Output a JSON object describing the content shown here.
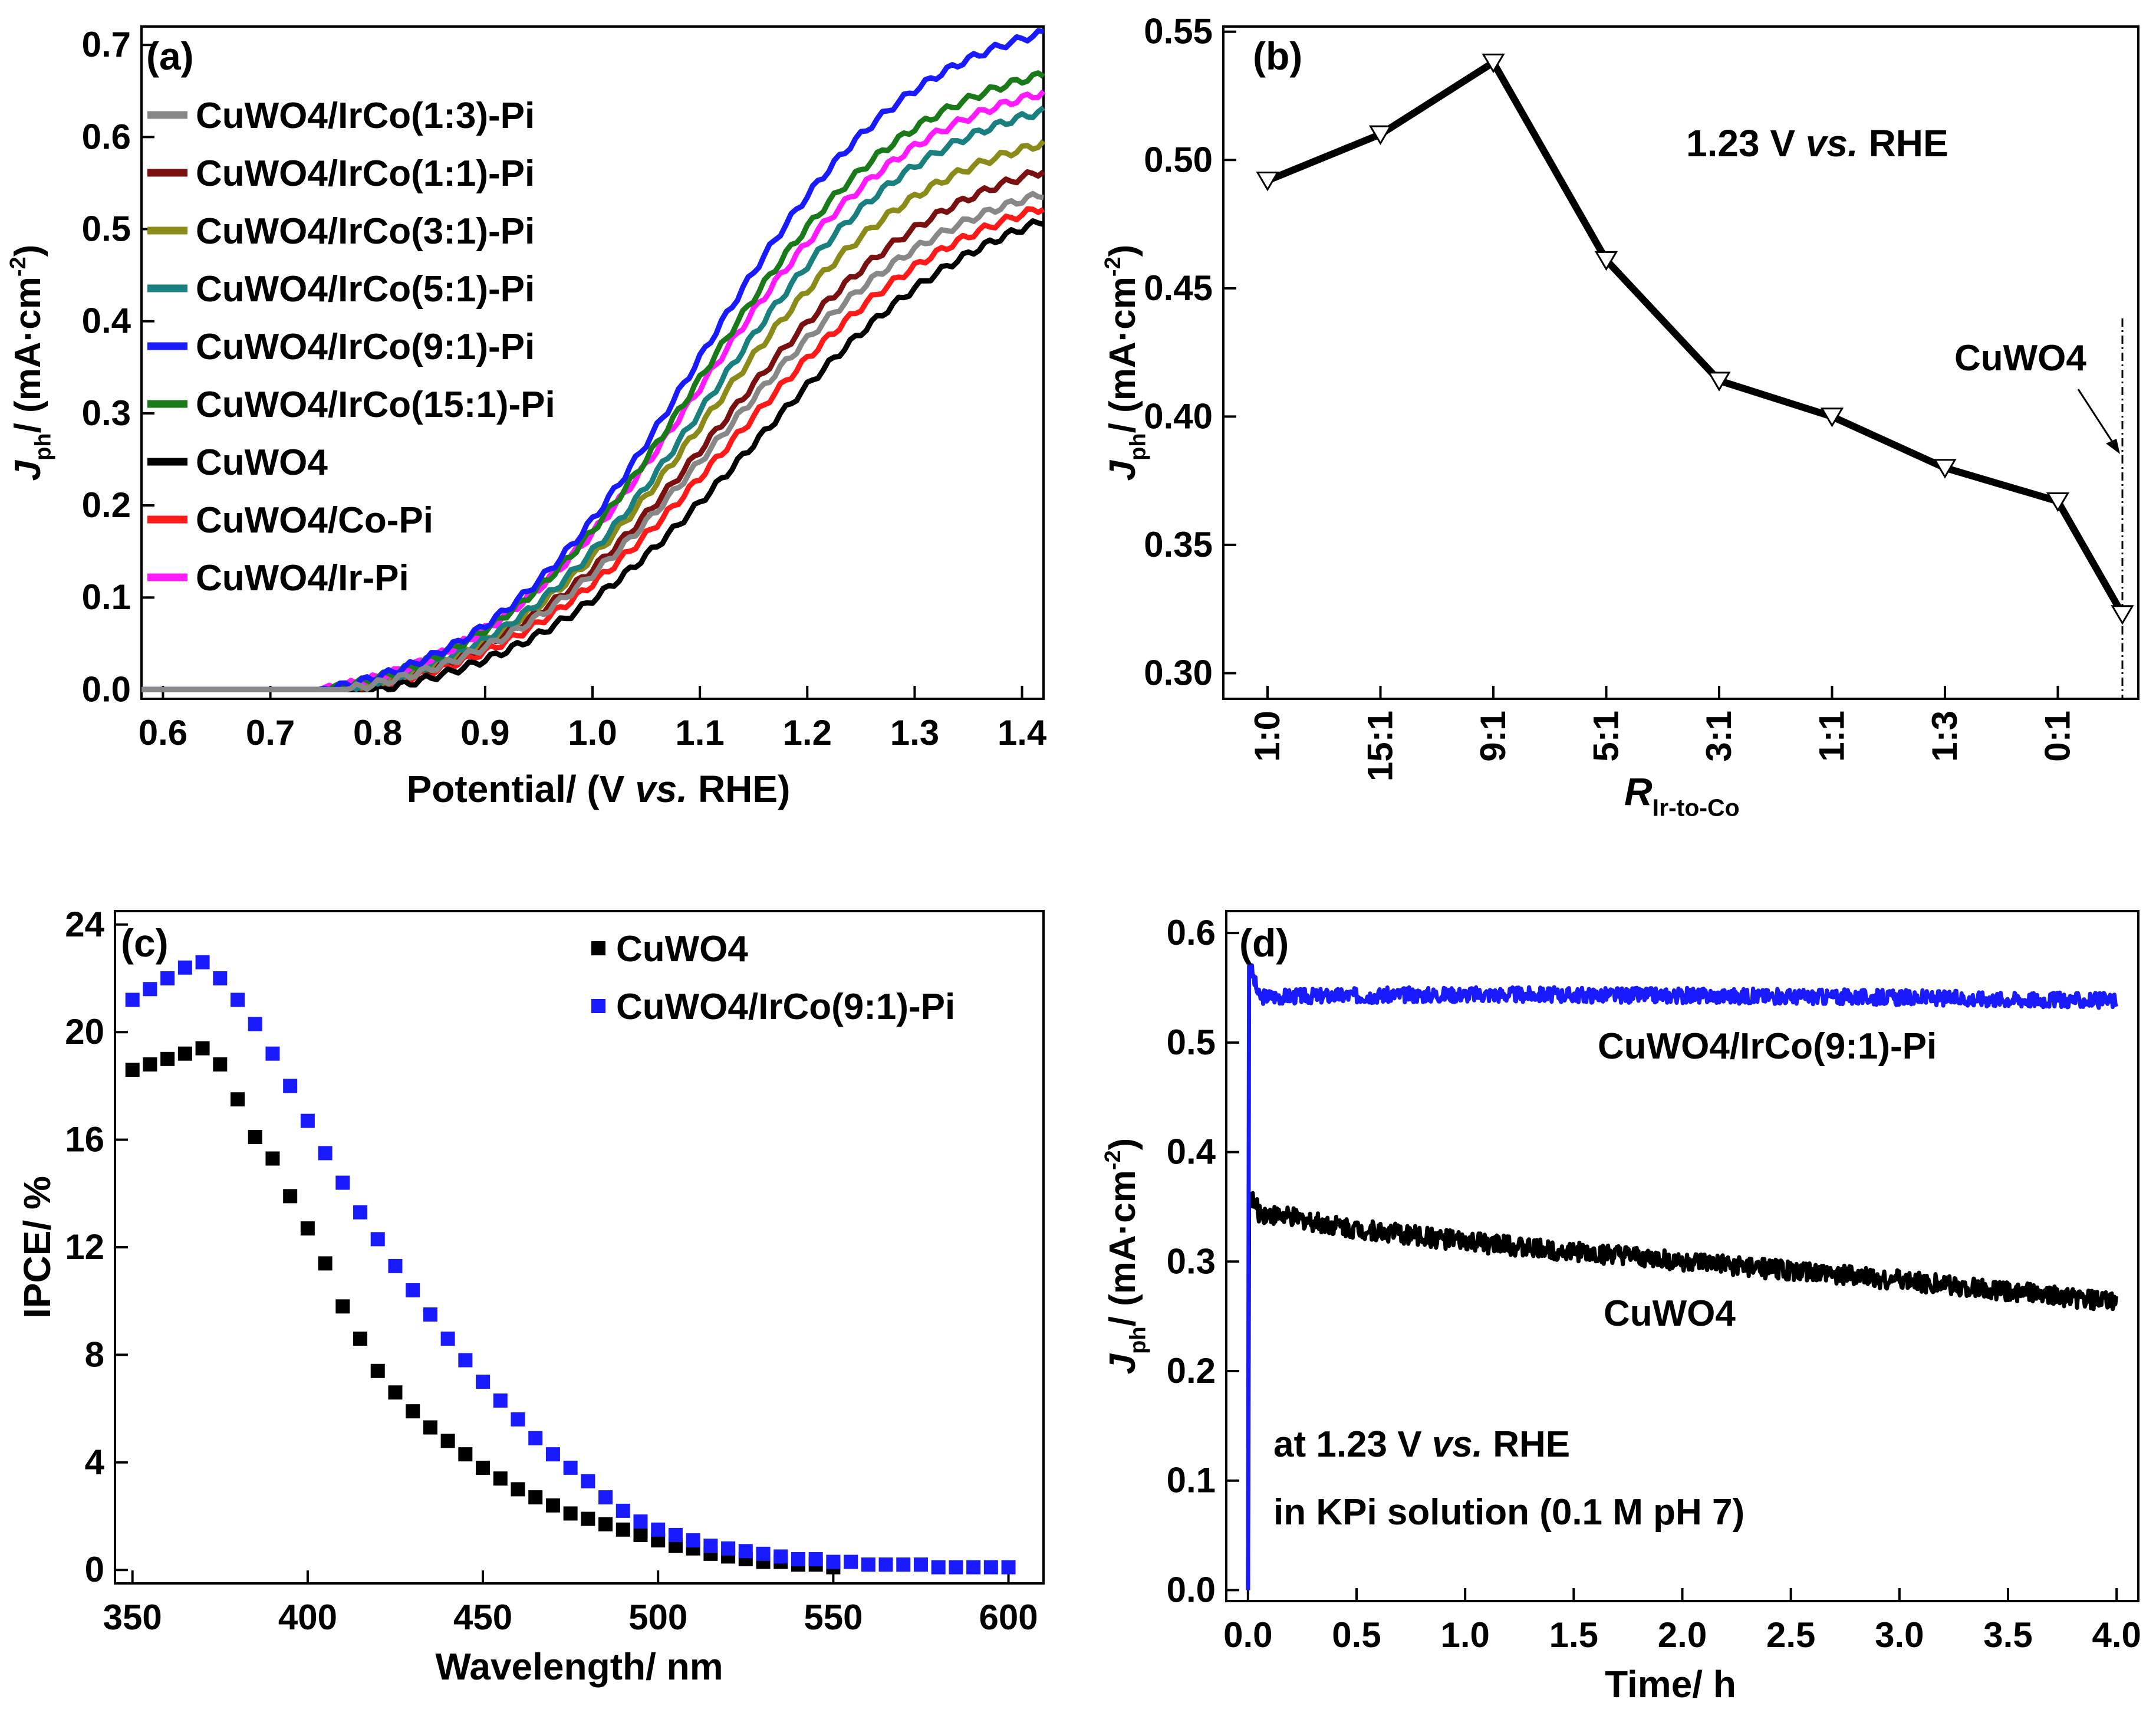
{
  "figure": {
    "description_free": true
  },
  "chart_data": [
    {
      "id": "a",
      "panel_label": "(a)",
      "type": "line",
      "xlabel": "Potential/ (V vs. RHE)",
      "xlabel_parts": [
        "Potential/ (V ",
        "vs.",
        " RHE)"
      ],
      "ylabel_parts": [
        "J",
        "ph",
        "/ (mA·cm",
        "-2",
        ")"
      ],
      "xlim": [
        0.58,
        1.42
      ],
      "ylim": [
        -0.01,
        0.72
      ],
      "xticks": [
        0.6,
        0.7,
        0.8,
        0.9,
        1.0,
        1.1,
        1.2,
        1.3,
        1.4
      ],
      "yticks": [
        0.0,
        0.1,
        0.2,
        0.3,
        0.4,
        0.5,
        0.6,
        0.7
      ],
      "legend_position": "top-left",
      "series": [
        {
          "name": "CuWO4/IrCo(1:3)-Pi",
          "color": "#888888",
          "order": 8,
          "onset": 0.77,
          "jmax": 0.535,
          "k": 4.2
        },
        {
          "name": "CuWO4/IrCo(1:1)-Pi",
          "color": "#7b1010",
          "order": 2,
          "onset": 0.77,
          "jmax": 0.56,
          "k": 4.2
        },
        {
          "name": "CuWO4/IrCo(3:1)-Pi",
          "color": "#8b8b1a",
          "order": 3,
          "onset": 0.76,
          "jmax": 0.59,
          "k": 4.4
        },
        {
          "name": "CuWO4/IrCo(5:1)-Pi",
          "color": "#1a7f7f",
          "order": 4,
          "onset": 0.76,
          "jmax": 0.625,
          "k": 4.5
        },
        {
          "name": "CuWO4/IrCo(9:1)-Pi",
          "color": "#1a1aff",
          "order": 7,
          "onset": 0.75,
          "jmax": 0.71,
          "k": 4.5
        },
        {
          "name": "CuWO4/IrCo(15:1)-Pi",
          "color": "#1a7a1a",
          "order": 6,
          "onset": 0.75,
          "jmax": 0.665,
          "k": 4.5
        },
        {
          "name": "CuWO4",
          "color": "#000000",
          "order": 1,
          "onset": 0.8,
          "jmax": 0.505,
          "k": 4.0
        },
        {
          "name": "CuWO4/Co-Pi",
          "color": "#ff1a1a",
          "order": 0,
          "onset": 0.78,
          "jmax": 0.52,
          "k": 4.1
        },
        {
          "name": "CuWO4/Ir-Pi",
          "color": "#ff1aff",
          "order": 5,
          "onset": 0.75,
          "jmax": 0.645,
          "k": 4.4
        }
      ]
    },
    {
      "id": "b",
      "panel_label": "(b)",
      "type": "line",
      "annotation_parts": [
        "1.23 V ",
        "vs.",
        " RHE"
      ],
      "xlabel_parts": [
        "R",
        "Ir-to-Co"
      ],
      "ylabel_parts": [
        "J",
        "ph",
        "/ (mA·cm",
        "-2",
        ")"
      ],
      "categories": [
        "1:0",
        "15:1",
        "9:1",
        "5:1",
        "3:1",
        "1:1",
        "1:3",
        "0:1"
      ],
      "values": [
        0.492,
        0.51,
        0.538,
        0.461,
        0.414,
        0.4,
        0.38,
        0.367
      ],
      "extra_point": {
        "label": "CuWO4",
        "value": 0.323
      },
      "ylim": [
        0.29,
        0.552
      ],
      "yticks": [
        0.3,
        0.35,
        0.4,
        0.45,
        0.5,
        0.55
      ],
      "ytick_labels": [
        "0.30",
        "0.35",
        "0.40",
        "0.45",
        "0.50",
        "0.55"
      ],
      "marker": "open-down-triangle"
    },
    {
      "id": "c",
      "panel_label": "(c)",
      "type": "scatter",
      "xlabel": "Wavelength/ nm",
      "ylabel": "IPCE/ %",
      "xlim": [
        345,
        610
      ],
      "ylim": [
        -0.5,
        24.5
      ],
      "xticks": [
        350,
        400,
        450,
        500,
        550,
        600
      ],
      "yticks": [
        0,
        4,
        8,
        12,
        16,
        20,
        24
      ],
      "legend_position": "top-right",
      "series": [
        {
          "name": "CuWO4",
          "color": "#000000",
          "x": [
            350,
            355,
            360,
            365,
            370,
            375,
            380,
            385,
            390,
            395,
            400,
            405,
            410,
            415,
            420,
            425,
            430,
            435,
            440,
            445,
            450,
            455,
            460,
            465,
            470,
            475,
            480,
            485,
            490,
            495,
            500,
            505,
            510,
            515,
            520,
            525,
            530,
            535,
            540,
            545,
            550
          ],
          "y": [
            18.6,
            18.8,
            19.0,
            19.2,
            19.4,
            18.8,
            17.5,
            16.1,
            15.3,
            13.9,
            12.7,
            11.4,
            9.8,
            8.6,
            7.4,
            6.6,
            5.9,
            5.3,
            4.8,
            4.3,
            3.8,
            3.4,
            3.0,
            2.7,
            2.4,
            2.1,
            1.9,
            1.7,
            1.5,
            1.3,
            1.1,
            0.9,
            0.8,
            0.6,
            0.5,
            0.4,
            0.3,
            0.3,
            0.2,
            0.2,
            0.1
          ]
        },
        {
          "name": "CuWO4/IrCo(9:1)-Pi",
          "color": "#1a1aff",
          "x": [
            350,
            355,
            360,
            365,
            370,
            375,
            380,
            385,
            390,
            395,
            400,
            405,
            410,
            415,
            420,
            425,
            430,
            435,
            440,
            445,
            450,
            455,
            460,
            465,
            470,
            475,
            480,
            485,
            490,
            495,
            500,
            505,
            510,
            515,
            520,
            525,
            530,
            535,
            540,
            545,
            550,
            555,
            560,
            565,
            570,
            575,
            580,
            585,
            590,
            595,
            600
          ],
          "y": [
            21.2,
            21.6,
            22.0,
            22.4,
            22.6,
            22.0,
            21.2,
            20.3,
            19.2,
            18.0,
            16.7,
            15.5,
            14.4,
            13.3,
            12.3,
            11.3,
            10.4,
            9.5,
            8.6,
            7.8,
            7.0,
            6.3,
            5.6,
            4.9,
            4.3,
            3.8,
            3.3,
            2.7,
            2.2,
            1.8,
            1.5,
            1.3,
            1.1,
            0.9,
            0.8,
            0.7,
            0.6,
            0.5,
            0.4,
            0.4,
            0.3,
            0.3,
            0.2,
            0.2,
            0.2,
            0.2,
            0.1,
            0.1,
            0.1,
            0.1,
            0.1
          ]
        }
      ]
    },
    {
      "id": "d",
      "panel_label": "(d)",
      "type": "line",
      "xlabel": "Time/ h",
      "ylabel_parts": [
        "J",
        "ph",
        "/ (mA·cm",
        "-2",
        ")"
      ],
      "xlim": [
        -0.1,
        4.1
      ],
      "ylim": [
        -0.01,
        0.62
      ],
      "xticks": [
        0.0,
        0.5,
        1.0,
        1.5,
        2.0,
        2.5,
        3.0,
        3.5,
        4.0
      ],
      "yticks": [
        0.0,
        0.1,
        0.2,
        0.3,
        0.4,
        0.5,
        0.6
      ],
      "annotation_line1_parts": [
        "at 1.23 V ",
        "vs.",
        " RHE"
      ],
      "annotation_line2": "in KPi solution (0.1 M pH 7)",
      "series": [
        {
          "name": "CuWO4/IrCo(9:1)-Pi",
          "color": "#1a1aff",
          "x": [
            0.0,
            0.01,
            0.05,
            1.0,
            2.0,
            3.0,
            4.0
          ],
          "y": [
            0.0,
            0.57,
            0.542,
            0.544,
            0.543,
            0.541,
            0.538
          ]
        },
        {
          "name": "CuWO4",
          "color": "#000000",
          "x": [
            0.0,
            0.01,
            0.05,
            0.5,
            1.0,
            2.0,
            3.0,
            4.0
          ],
          "y": [
            0.0,
            0.36,
            0.345,
            0.33,
            0.318,
            0.3,
            0.283,
            0.263
          ]
        }
      ]
    }
  ]
}
